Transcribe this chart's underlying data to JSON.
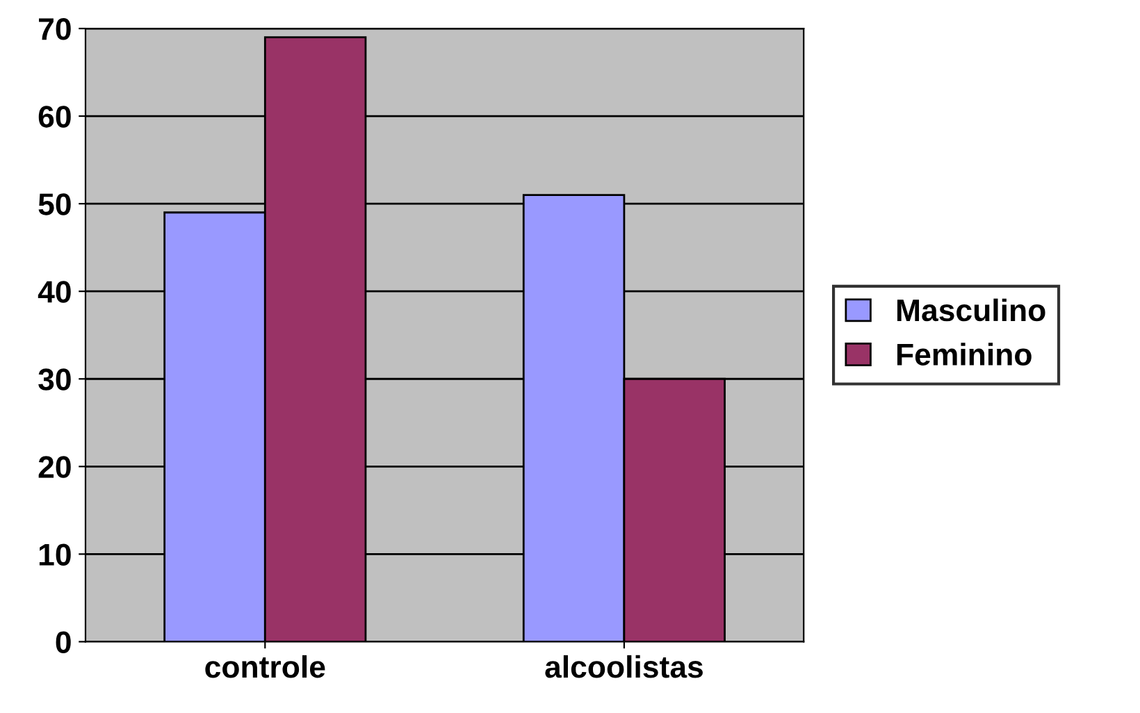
{
  "chart_data": {
    "type": "bar",
    "categories": [
      "controle",
      "alcoolistas"
    ],
    "series": [
      {
        "name": "Masculino",
        "color": "#9999ff",
        "values": [
          49,
          51
        ]
      },
      {
        "name": "Feminino",
        "color": "#993366",
        "values": [
          69,
          30
        ]
      }
    ],
    "ylim": [
      0,
      70
    ],
    "yticks": [
      0,
      10,
      20,
      30,
      40,
      50,
      60,
      70
    ],
    "grid": "y",
    "legend": "right"
  }
}
